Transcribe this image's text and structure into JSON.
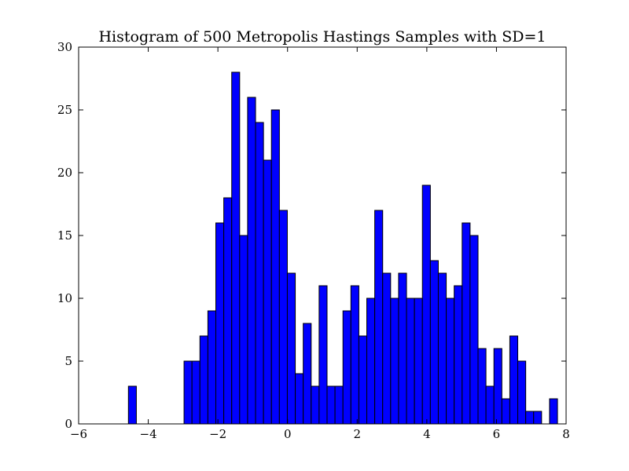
{
  "chart_data": {
    "type": "bar",
    "title": "Histogram of 500 Metropolis Hastings Samples with SD=1",
    "xlabel": "",
    "ylabel": "",
    "xlim": [
      -6,
      8
    ],
    "ylim": [
      0,
      30
    ],
    "xticks": [
      -6,
      -4,
      -2,
      0,
      2,
      4,
      6,
      8
    ],
    "xtick_labels": [
      "−6",
      "−4",
      "−2",
      "0",
      "2",
      "4",
      "6",
      "8"
    ],
    "yticks": [
      0,
      5,
      10,
      15,
      20,
      25,
      30
    ],
    "ytick_labels": [
      "0",
      "5",
      "10",
      "15",
      "20",
      "25",
      "30"
    ],
    "bin_start": -4.57,
    "bin_width": 0.2282,
    "values": [
      3,
      0,
      0,
      0,
      0,
      0,
      0,
      5,
      5,
      7,
      9,
      16,
      18,
      28,
      15,
      26,
      24,
      21,
      25,
      17,
      12,
      4,
      8,
      3,
      11,
      3,
      3,
      9,
      11,
      7,
      10,
      17,
      12,
      10,
      12,
      10,
      10,
      19,
      13,
      12,
      10,
      11,
      16,
      15,
      6,
      3,
      6,
      2,
      7,
      5,
      1,
      1,
      0,
      2
    ],
    "bar_color": "#0000ff",
    "grid": false,
    "legend": "none"
  }
}
